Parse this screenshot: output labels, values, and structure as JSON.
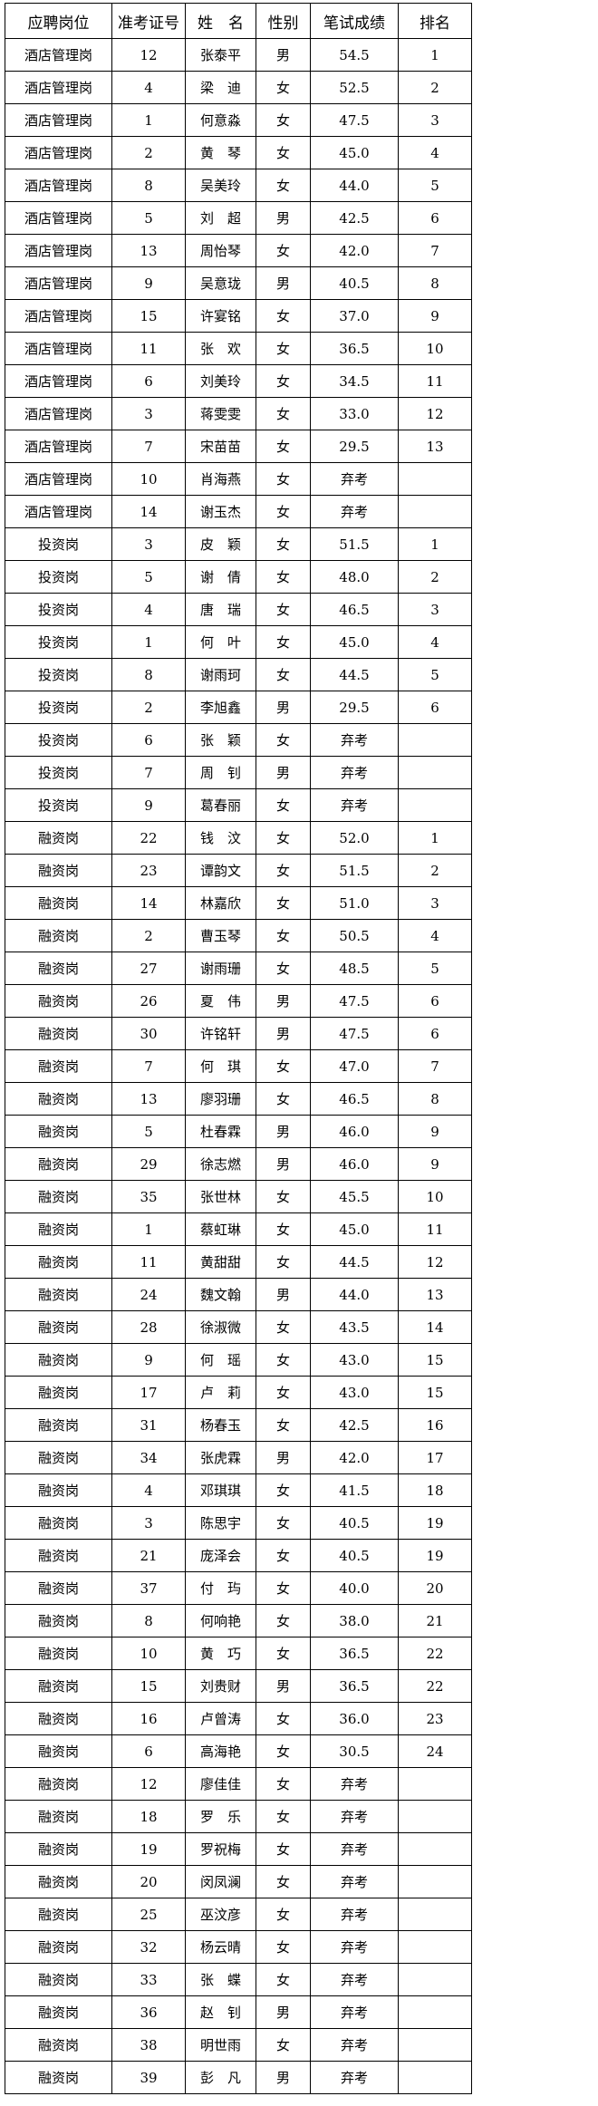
{
  "header": {
    "position": "应聘岗位",
    "exam_no": "准考证号",
    "name": "姓　名",
    "gender": "性别",
    "score": "笔试成绩",
    "rank": "排名"
  },
  "rows": [
    [
      "酒店管理岗",
      "12",
      "张泰平",
      "男",
      "54.5",
      "1"
    ],
    [
      "酒店管理岗",
      "4",
      "梁　迪",
      "女",
      "52.5",
      "2"
    ],
    [
      "酒店管理岗",
      "1",
      "何意淼",
      "女",
      "47.5",
      "3"
    ],
    [
      "酒店管理岗",
      "2",
      "黄　琴",
      "女",
      "45.0",
      "4"
    ],
    [
      "酒店管理岗",
      "8",
      "吴美玲",
      "女",
      "44.0",
      "5"
    ],
    [
      "酒店管理岗",
      "5",
      "刘　超",
      "男",
      "42.5",
      "6"
    ],
    [
      "酒店管理岗",
      "13",
      "周怡琴",
      "女",
      "42.0",
      "7"
    ],
    [
      "酒店管理岗",
      "9",
      "吴意珑",
      "男",
      "40.5",
      "8"
    ],
    [
      "酒店管理岗",
      "15",
      "许宴铭",
      "女",
      "37.0",
      "9"
    ],
    [
      "酒店管理岗",
      "11",
      "张　欢",
      "女",
      "36.5",
      "10"
    ],
    [
      "酒店管理岗",
      "6",
      "刘美玲",
      "女",
      "34.5",
      "11"
    ],
    [
      "酒店管理岗",
      "3",
      "蒋雯雯",
      "女",
      "33.0",
      "12"
    ],
    [
      "酒店管理岗",
      "7",
      "宋苗苗",
      "女",
      "29.5",
      "13"
    ],
    [
      "酒店管理岗",
      "10",
      "肖海燕",
      "女",
      "弃考",
      ""
    ],
    [
      "酒店管理岗",
      "14",
      "谢玉杰",
      "女",
      "弃考",
      ""
    ],
    [
      "投资岗",
      "3",
      "皮　颖",
      "女",
      "51.5",
      "1"
    ],
    [
      "投资岗",
      "5",
      "谢　倩",
      "女",
      "48.0",
      "2"
    ],
    [
      "投资岗",
      "4",
      "唐　瑞",
      "女",
      "46.5",
      "3"
    ],
    [
      "投资岗",
      "1",
      "何　叶",
      "女",
      "45.0",
      "4"
    ],
    [
      "投资岗",
      "8",
      "谢雨珂",
      "女",
      "44.5",
      "5"
    ],
    [
      "投资岗",
      "2",
      "李旭鑫",
      "男",
      "29.5",
      "6"
    ],
    [
      "投资岗",
      "6",
      "张　颖",
      "女",
      "弃考",
      ""
    ],
    [
      "投资岗",
      "7",
      "周　钊",
      "男",
      "弃考",
      ""
    ],
    [
      "投资岗",
      "9",
      "葛春丽",
      "女",
      "弃考",
      ""
    ],
    [
      "融资岗",
      "22",
      "钱　汶",
      "女",
      "52.0",
      "1"
    ],
    [
      "融资岗",
      "23",
      "谭韵文",
      "女",
      "51.5",
      "2"
    ],
    [
      "融资岗",
      "14",
      "林嘉欣",
      "女",
      "51.0",
      "3"
    ],
    [
      "融资岗",
      "2",
      "曹玉琴",
      "女",
      "50.5",
      "4"
    ],
    [
      "融资岗",
      "27",
      "谢雨珊",
      "女",
      "48.5",
      "5"
    ],
    [
      "融资岗",
      "26",
      "夏　伟",
      "男",
      "47.5",
      "6"
    ],
    [
      "融资岗",
      "30",
      "许铭轩",
      "男",
      "47.5",
      "6"
    ],
    [
      "融资岗",
      "7",
      "何　琪",
      "女",
      "47.0",
      "7"
    ],
    [
      "融资岗",
      "13",
      "廖羽珊",
      "女",
      "46.5",
      "8"
    ],
    [
      "融资岗",
      "5",
      "杜春霖",
      "男",
      "46.0",
      "9"
    ],
    [
      "融资岗",
      "29",
      "徐志燃",
      "男",
      "46.0",
      "9"
    ],
    [
      "融资岗",
      "35",
      "张世林",
      "女",
      "45.5",
      "10"
    ],
    [
      "融资岗",
      "1",
      "蔡虹琳",
      "女",
      "45.0",
      "11"
    ],
    [
      "融资岗",
      "11",
      "黄甜甜",
      "女",
      "44.5",
      "12"
    ],
    [
      "融资岗",
      "24",
      "魏文翰",
      "男",
      "44.0",
      "13"
    ],
    [
      "融资岗",
      "28",
      "徐淑微",
      "女",
      "43.5",
      "14"
    ],
    [
      "融资岗",
      "9",
      "何　瑶",
      "女",
      "43.0",
      "15"
    ],
    [
      "融资岗",
      "17",
      "卢　莉",
      "女",
      "43.0",
      "15"
    ],
    [
      "融资岗",
      "31",
      "杨春玉",
      "女",
      "42.5",
      "16"
    ],
    [
      "融资岗",
      "34",
      "张虎霖",
      "男",
      "42.0",
      "17"
    ],
    [
      "融资岗",
      "4",
      "邓琪琪",
      "女",
      "41.5",
      "18"
    ],
    [
      "融资岗",
      "3",
      "陈思宇",
      "女",
      "40.5",
      "19"
    ],
    [
      "融资岗",
      "21",
      "庞泽会",
      "女",
      "40.5",
      "19"
    ],
    [
      "融资岗",
      "37",
      "付　玙",
      "女",
      "40.0",
      "20"
    ],
    [
      "融资岗",
      "8",
      "何响艳",
      "女",
      "38.0",
      "21"
    ],
    [
      "融资岗",
      "10",
      "黄　巧",
      "女",
      "36.5",
      "22"
    ],
    [
      "融资岗",
      "15",
      "刘贵财",
      "男",
      "36.5",
      "22"
    ],
    [
      "融资岗",
      "16",
      "卢曾涛",
      "女",
      "36.0",
      "23"
    ],
    [
      "融资岗",
      "6",
      "高海艳",
      "女",
      "30.5",
      "24"
    ],
    [
      "融资岗",
      "12",
      "廖佳佳",
      "女",
      "弃考",
      ""
    ],
    [
      "融资岗",
      "18",
      "罗　乐",
      "女",
      "弃考",
      ""
    ],
    [
      "融资岗",
      "19",
      "罗祝梅",
      "女",
      "弃考",
      ""
    ],
    [
      "融资岗",
      "20",
      "闵凤澜",
      "女",
      "弃考",
      ""
    ],
    [
      "融资岗",
      "25",
      "巫汶彦",
      "女",
      "弃考",
      ""
    ],
    [
      "融资岗",
      "32",
      "杨云晴",
      "女",
      "弃考",
      ""
    ],
    [
      "融资岗",
      "33",
      "张　蝶",
      "女",
      "弃考",
      ""
    ],
    [
      "融资岗",
      "36",
      "赵　钊",
      "男",
      "弃考",
      ""
    ],
    [
      "融资岗",
      "38",
      "明世雨",
      "女",
      "弃考",
      ""
    ],
    [
      "融资岗",
      "39",
      "彭　凡",
      "男",
      "弃考",
      ""
    ]
  ]
}
